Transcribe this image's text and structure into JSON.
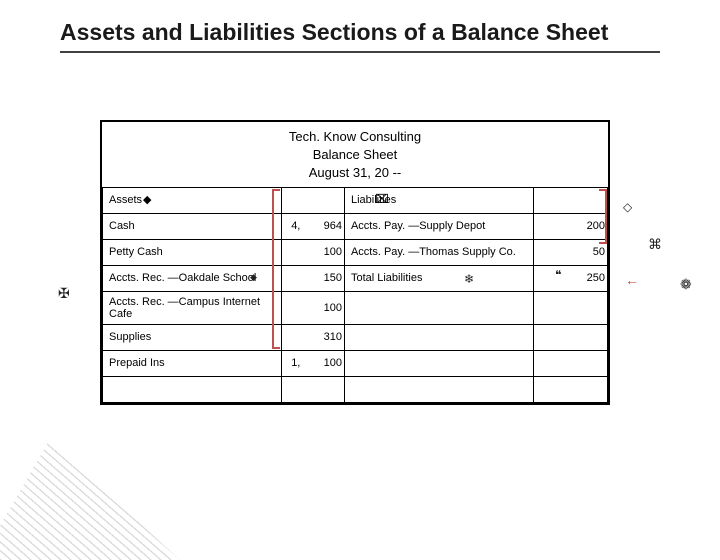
{
  "title": "Assets and Liabilities Sections of a Balance Sheet",
  "header": {
    "company": "Tech. Know Consulting",
    "report": "Balance Sheet",
    "date": "August 31, 20 --"
  },
  "columns": {
    "assets": "Assets",
    "liabilities": "Liabilities"
  },
  "rows": [
    {
      "asset_name": "Cash",
      "asset_val": "4, 964",
      "liab_name": "Accts. Pay. —Supply Depot",
      "liab_val": "200"
    },
    {
      "asset_name": "Petty Cash",
      "asset_val": "100",
      "liab_name": "Accts. Pay. —Thomas Supply Co.",
      "liab_val": "50"
    },
    {
      "asset_name": "Accts. Rec. —Oakdale School",
      "asset_val": "150",
      "liab_name": "Total Liabilities",
      "liab_val": "250"
    },
    {
      "asset_name": "Accts. Rec. —Campus Internet Cafe",
      "asset_val": "100",
      "liab_name": "",
      "liab_val": ""
    },
    {
      "asset_name": "Supplies",
      "asset_val": "310",
      "liab_name": "",
      "liab_val": ""
    },
    {
      "asset_name": "Prepaid Ins",
      "asset_val": "1, 100",
      "liab_name": "",
      "liab_val": ""
    },
    {
      "asset_name": "",
      "asset_val": "",
      "liab_name": "",
      "liab_val": ""
    }
  ],
  "markers": {
    "diamond_filled": "◆",
    "box_x": "⌧",
    "box_open": "◇",
    "cmd": "⌘",
    "rosette": "❁",
    "snow": "❄",
    "quote": "❝",
    "diamond_small": "◆",
    "arrow_left": "←",
    "cross_outline": "✠"
  },
  "colors": {
    "bracket": "#c0504d",
    "text": "#1a1a1a"
  }
}
